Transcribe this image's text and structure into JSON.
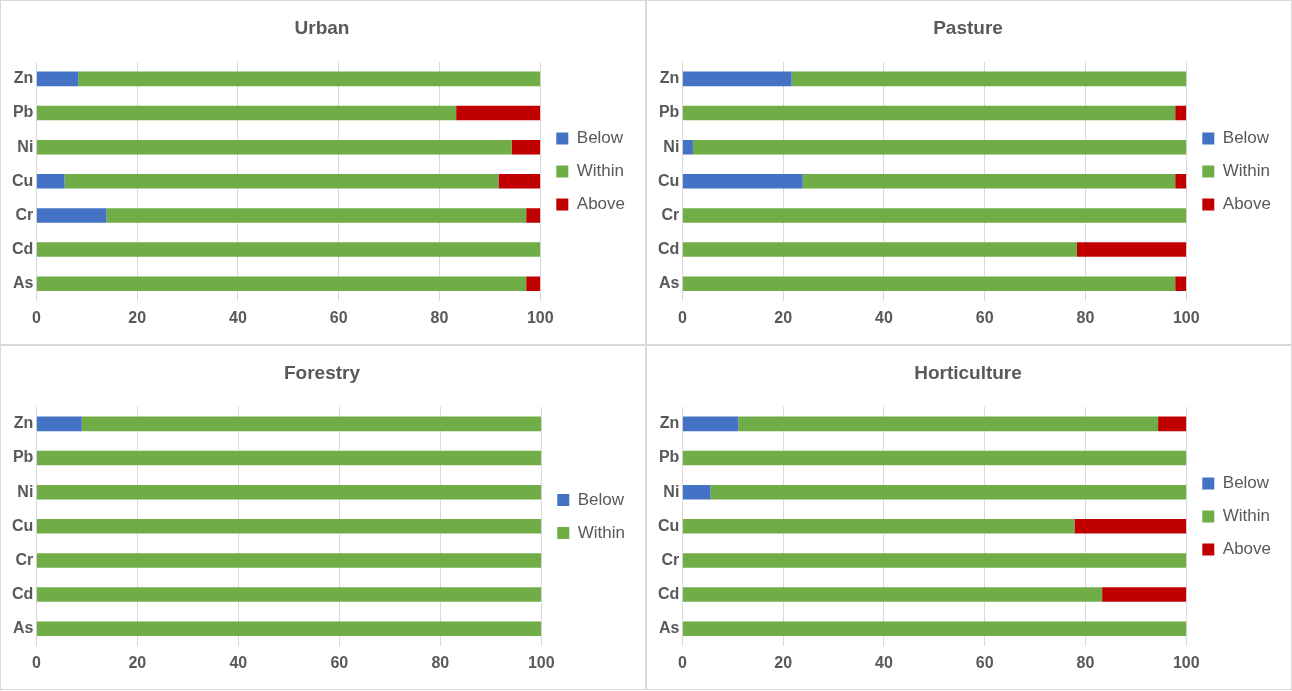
{
  "chart_data": [
    {
      "type": "bar",
      "title": "Urban",
      "orientation": "horizontal",
      "stacked": true,
      "categories": [
        "Zn",
        "Pb",
        "Ni",
        "Cu",
        "Cr",
        "Cd",
        "As"
      ],
      "series": [
        {
          "name": "Below",
          "color": "#4472c4",
          "values": [
            8.3,
            0,
            0,
            5.6,
            13.9,
            0,
            0
          ]
        },
        {
          "name": "Within",
          "color": "#70ad47",
          "values": [
            91.7,
            83.3,
            94.3,
            86.1,
            83.3,
            100,
            97.2
          ]
        },
        {
          "name": "Above",
          "color": "#c00000",
          "values": [
            0,
            16.7,
            5.7,
            8.3,
            2.8,
            0,
            2.8
          ]
        }
      ],
      "xlim": [
        0,
        100
      ],
      "xticks": [
        0,
        20,
        40,
        60,
        80,
        100
      ],
      "grid": "x",
      "legend": "right"
    },
    {
      "type": "bar",
      "title": "Pasture",
      "orientation": "horizontal",
      "stacked": true,
      "categories": [
        "Zn",
        "Pb",
        "Ni",
        "Cu",
        "Cr",
        "Cd",
        "As"
      ],
      "series": [
        {
          "name": "Below",
          "color": "#4472c4",
          "values": [
            21.7,
            0,
            2.1,
            23.9,
            0,
            0,
            0
          ]
        },
        {
          "name": "Within",
          "color": "#70ad47",
          "values": [
            78.3,
            97.8,
            97.9,
            73.9,
            100,
            78.3,
            97.8
          ]
        },
        {
          "name": "Above",
          "color": "#c00000",
          "values": [
            0,
            2.2,
            0,
            2.2,
            0,
            21.7,
            2.2
          ]
        }
      ],
      "xlim": [
        0,
        100
      ],
      "xticks": [
        0,
        20,
        40,
        60,
        80,
        100
      ],
      "grid": "x",
      "legend": "right"
    },
    {
      "type": "bar",
      "title": "Forestry",
      "orientation": "horizontal",
      "stacked": true,
      "categories": [
        "Zn",
        "Pb",
        "Ni",
        "Cu",
        "Cr",
        "Cd",
        "As"
      ],
      "series": [
        {
          "name": "Below",
          "color": "#4472c4",
          "values": [
            9.0,
            0,
            0,
            0,
            0,
            0,
            0
          ]
        },
        {
          "name": "Within",
          "color": "#70ad47",
          "values": [
            91.0,
            100,
            100,
            100,
            100,
            100,
            100
          ]
        }
      ],
      "xlim": [
        0,
        100
      ],
      "xticks": [
        0,
        20,
        40,
        60,
        80,
        100
      ],
      "grid": "x",
      "legend": "right"
    },
    {
      "type": "bar",
      "title": "Horticulture",
      "orientation": "horizontal",
      "stacked": true,
      "categories": [
        "Zn",
        "Pb",
        "Ni",
        "Cu",
        "Cr",
        "Cd",
        "As"
      ],
      "series": [
        {
          "name": "Below",
          "color": "#4472c4",
          "values": [
            11.1,
            0,
            5.6,
            0,
            0,
            0,
            0
          ]
        },
        {
          "name": "Within",
          "color": "#70ad47",
          "values": [
            83.3,
            100,
            94.4,
            77.8,
            100,
            83.3,
            100
          ]
        },
        {
          "name": "Above",
          "color": "#c00000",
          "values": [
            5.6,
            0,
            0,
            22.2,
            0,
            16.7,
            0
          ]
        }
      ],
      "xlim": [
        0,
        100
      ],
      "xticks": [
        0,
        20,
        40,
        60,
        80,
        100
      ],
      "grid": "x",
      "legend": "right"
    }
  ]
}
